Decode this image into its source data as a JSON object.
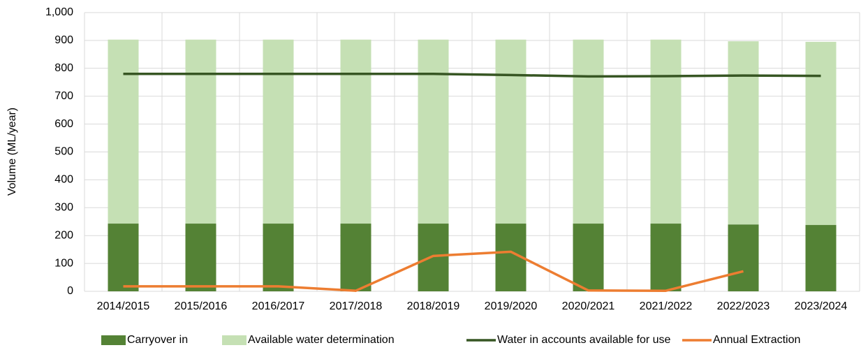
{
  "chart_data": {
    "type": "stacked_bar_line",
    "y_label": "Volume (ML/year)",
    "categories": [
      "2014/2015",
      "2015/2016",
      "2016/2017",
      "2017/2018",
      "2018/2019",
      "2019/2020",
      "2020/2021",
      "2021/2022",
      "2022/2023",
      "2023/2024"
    ],
    "series": [
      {
        "name": "Carryover in",
        "type": "bar",
        "color": "#548235",
        "values": [
          243,
          243,
          243,
          243,
          243,
          243,
          243,
          243,
          240,
          238
        ]
      },
      {
        "name": "Available water determination",
        "type": "bar",
        "color": "#c5e0b4",
        "values": [
          660,
          660,
          660,
          660,
          660,
          660,
          660,
          660,
          657,
          657
        ]
      },
      {
        "name": "Water in accounts available for use",
        "type": "line",
        "color": "#375623",
        "values": [
          780,
          780,
          780,
          780,
          780,
          776,
          771,
          772,
          774,
          773
        ]
      },
      {
        "name": "Annual Extraction",
        "type": "line",
        "color": "#ed7d31",
        "values": [
          18,
          18,
          18,
          2,
          127,
          142,
          3,
          2,
          72,
          null
        ]
      }
    ],
    "ylim": [
      0,
      1000
    ],
    "yticks": [
      0,
      100,
      200,
      300,
      400,
      500,
      600,
      700,
      800,
      900,
      {
        "value": 1000,
        "label": "1,000"
      }
    ],
    "grid": true,
    "legend": "bottom"
  }
}
